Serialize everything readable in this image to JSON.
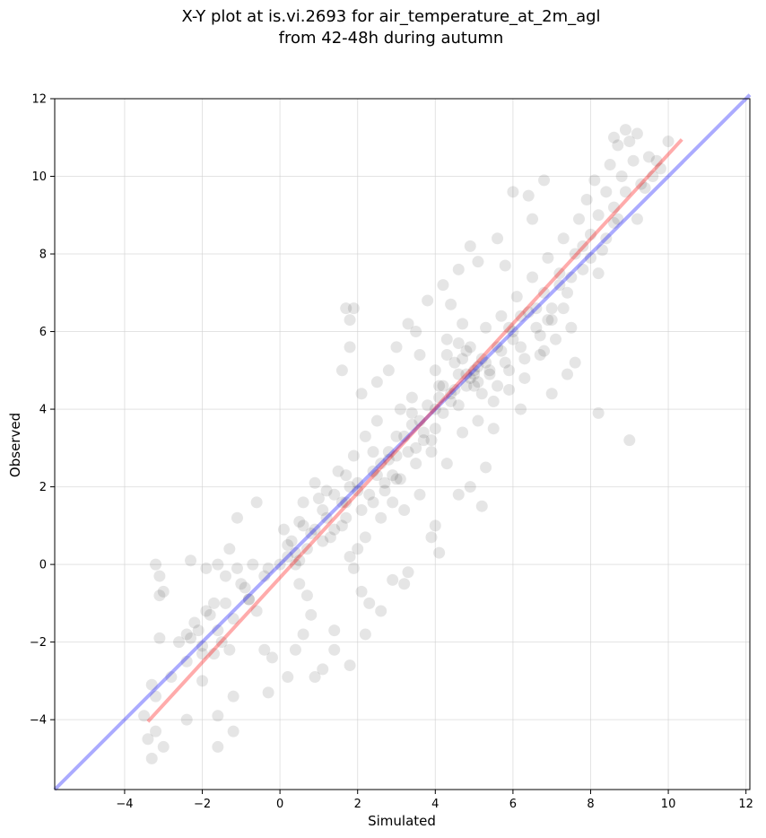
{
  "chart_data": {
    "type": "scatter",
    "title_line1": "X-Y plot at is.vi.2693 for air_temperature_at_2m_agl",
    "title_line2": "from 42-48h during autumn",
    "xlabel": "Simulated",
    "ylabel": "Observed",
    "xlim": [
      -5.8,
      12.1
    ],
    "ylim": [
      -5.8,
      12.0
    ],
    "xticks": [
      -4,
      -2,
      0,
      2,
      4,
      6,
      8,
      10,
      12
    ],
    "yticks": [
      -4,
      -2,
      0,
      2,
      4,
      6,
      8,
      10,
      12
    ],
    "xtick_labels": [
      "−4",
      "−2",
      "0",
      "2",
      "4",
      "6",
      "8",
      "10",
      "12"
    ],
    "ytick_labels": [
      "−4",
      "−2",
      "0",
      "2",
      "4",
      "6",
      "8",
      "10",
      "12"
    ],
    "grid": true,
    "point_color": "#000000",
    "point_alpha": 0.1,
    "identity_line": {
      "color": "#0000ff",
      "from": [
        -5.8,
        -5.8
      ],
      "to": [
        12.1,
        12.1
      ]
    },
    "fit_line": {
      "color": "#ff0000",
      "from": [
        -3.4,
        -4.05
      ],
      "to": [
        10.35,
        10.95
      ]
    },
    "points": [
      [
        -3.3,
        -5.0
      ],
      [
        -3.4,
        -4.5
      ],
      [
        -3.2,
        -4.3
      ],
      [
        -3.0,
        -4.7
      ],
      [
        -3.5,
        -3.9
      ],
      [
        -3.3,
        -3.1
      ],
      [
        -3.2,
        -3.4
      ],
      [
        -3.1,
        -1.9
      ],
      [
        -3.2,
        0.0
      ],
      [
        -3.0,
        -0.7
      ],
      [
        -3.1,
        -0.8
      ],
      [
        -3.1,
        -0.3
      ],
      [
        -2.4,
        -4.0
      ],
      [
        -2.0,
        -3.0
      ],
      [
        -1.6,
        -3.9
      ],
      [
        -1.6,
        -4.7
      ],
      [
        -1.2,
        -4.3
      ],
      [
        -1.2,
        -3.4
      ],
      [
        -2.0,
        -2.3
      ],
      [
        -2.3,
        -1.9
      ],
      [
        -2.6,
        -2.0
      ],
      [
        -2.2,
        -1.5
      ],
      [
        -2.4,
        -1.8
      ],
      [
        -1.9,
        -1.2
      ],
      [
        -1.5,
        -2.0
      ],
      [
        -1.7,
        -2.3
      ],
      [
        -1.3,
        -2.2
      ],
      [
        -1.7,
        -1.0
      ],
      [
        -1.4,
        -0.3
      ],
      [
        -1.0,
        -0.5
      ],
      [
        -1.3,
        0.4
      ],
      [
        -1.1,
        -0.1
      ],
      [
        -0.8,
        -0.9
      ],
      [
        -1.9,
        -0.1
      ],
      [
        -1.6,
        0.0
      ],
      [
        -2.3,
        0.1
      ],
      [
        -1.1,
        1.2
      ],
      [
        -0.6,
        1.6
      ],
      [
        -0.6,
        -1.2
      ],
      [
        -0.4,
        -2.2
      ],
      [
        -0.2,
        -2.4
      ],
      [
        -0.3,
        -3.3
      ],
      [
        0.2,
        -2.9
      ],
      [
        0.4,
        -2.2
      ],
      [
        0.6,
        -1.8
      ],
      [
        0.9,
        -2.9
      ],
      [
        1.1,
        -2.7
      ],
      [
        1.4,
        -2.2
      ],
      [
        1.4,
        -1.7
      ],
      [
        1.8,
        -2.6
      ],
      [
        0.1,
        0.9
      ],
      [
        0.2,
        0.2
      ],
      [
        0.4,
        0.0
      ],
      [
        0.5,
        -0.5
      ],
      [
        0.7,
        -0.8
      ],
      [
        0.8,
        -1.3
      ],
      [
        0.3,
        0.6
      ],
      [
        0.5,
        1.1
      ],
      [
        0.6,
        1.6
      ],
      [
        0.7,
        0.4
      ],
      [
        0.9,
        0.9
      ],
      [
        1.1,
        1.4
      ],
      [
        1.3,
        0.7
      ],
      [
        1.2,
        1.9
      ],
      [
        0.9,
        2.1
      ],
      [
        1.5,
        2.4
      ],
      [
        1.7,
        1.6
      ],
      [
        1.6,
        1.0
      ],
      [
        1.8,
        2.0
      ],
      [
        1.9,
        2.8
      ],
      [
        2.0,
        2.1
      ],
      [
        2.1,
        1.4
      ],
      [
        2.2,
        0.7
      ],
      [
        2.3,
        1.8
      ],
      [
        2.5,
        2.3
      ],
      [
        2.6,
        1.2
      ],
      [
        2.4,
        2.9
      ],
      [
        2.7,
        2.1
      ],
      [
        2.9,
        1.6
      ],
      [
        2.8,
        2.7
      ],
      [
        3.0,
        3.3
      ],
      [
        3.1,
        2.2
      ],
      [
        3.2,
        1.4
      ],
      [
        3.3,
        2.9
      ],
      [
        3.4,
        3.6
      ],
      [
        3.5,
        2.6
      ],
      [
        3.6,
        1.8
      ],
      [
        3.7,
        3.2
      ],
      [
        3.8,
        4.1
      ],
      [
        3.9,
        2.9
      ],
      [
        4.0,
        3.5
      ],
      [
        4.1,
        4.6
      ],
      [
        4.2,
        3.9
      ],
      [
        4.3,
        2.6
      ],
      [
        4.4,
        4.4
      ],
      [
        4.5,
        5.2
      ],
      [
        4.6,
        4.1
      ],
      [
        4.7,
        3.4
      ],
      [
        4.8,
        4.9
      ],
      [
        4.9,
        5.6
      ],
      [
        5.0,
        4.6
      ],
      [
        5.1,
        3.7
      ],
      [
        5.2,
        5.3
      ],
      [
        5.3,
        6.1
      ],
      [
        5.4,
        4.9
      ],
      [
        5.5,
        4.2
      ],
      [
        5.6,
        5.6
      ],
      [
        5.7,
        6.4
      ],
      [
        5.8,
        5.2
      ],
      [
        5.9,
        4.5
      ],
      [
        6.0,
        6.0
      ],
      [
        6.1,
        6.9
      ],
      [
        6.2,
        5.6
      ],
      [
        6.3,
        4.8
      ],
      [
        6.4,
        6.5
      ],
      [
        6.5,
        7.4
      ],
      [
        6.6,
        6.1
      ],
      [
        6.7,
        5.4
      ],
      [
        6.8,
        7.0
      ],
      [
        6.9,
        7.9
      ],
      [
        7.0,
        6.6
      ],
      [
        7.1,
        5.8
      ],
      [
        7.2,
        7.5
      ],
      [
        7.3,
        8.4
      ],
      [
        7.4,
        7.0
      ],
      [
        7.5,
        6.1
      ],
      [
        7.6,
        8.0
      ],
      [
        7.7,
        8.9
      ],
      [
        7.8,
        7.6
      ],
      [
        7.9,
        9.4
      ],
      [
        8.0,
        8.5
      ],
      [
        8.1,
        9.9
      ],
      [
        8.2,
        9.0
      ],
      [
        8.3,
        8.1
      ],
      [
        8.4,
        9.6
      ],
      [
        8.5,
        10.3
      ],
      [
        8.6,
        9.2
      ],
      [
        8.7,
        10.8
      ],
      [
        8.8,
        10.0
      ],
      [
        8.9,
        9.6
      ],
      [
        9.0,
        10.9
      ],
      [
        9.1,
        10.4
      ],
      [
        9.2,
        11.1
      ],
      [
        9.3,
        9.8
      ],
      [
        9.5,
        10.5
      ],
      [
        9.8,
        10.2
      ],
      [
        10.0,
        10.9
      ],
      [
        9.6,
        10.0
      ],
      [
        8.6,
        11.0
      ],
      [
        8.9,
        11.2
      ],
      [
        9.2,
        8.9
      ],
      [
        8.6,
        8.8
      ],
      [
        8.2,
        7.5
      ],
      [
        9.0,
        3.2
      ],
      [
        8.2,
        3.9
      ],
      [
        7.4,
        4.9
      ],
      [
        7.6,
        5.2
      ],
      [
        7.0,
        4.4
      ],
      [
        6.8,
        5.5
      ],
      [
        6.2,
        4.0
      ],
      [
        5.5,
        3.5
      ],
      [
        5.3,
        2.5
      ],
      [
        5.2,
        1.5
      ],
      [
        4.9,
        2.0
      ],
      [
        4.6,
        1.8
      ],
      [
        4.0,
        1.0
      ],
      [
        4.1,
        0.3
      ],
      [
        3.9,
        0.7
      ],
      [
        3.3,
        -0.2
      ],
      [
        3.2,
        -0.5
      ],
      [
        2.9,
        -0.4
      ],
      [
        2.6,
        -1.2
      ],
      [
        2.2,
        -1.8
      ],
      [
        2.1,
        -0.7
      ],
      [
        1.9,
        -0.1
      ],
      [
        1.8,
        0.2
      ],
      [
        2.0,
        0.4
      ],
      [
        2.3,
        -1.0
      ],
      [
        1.7,
        6.6
      ],
      [
        1.9,
        6.6
      ],
      [
        1.8,
        6.3
      ],
      [
        1.8,
        5.6
      ],
      [
        1.6,
        5.0
      ],
      [
        2.1,
        4.4
      ],
      [
        2.5,
        4.7
      ],
      [
        2.8,
        5.0
      ],
      [
        3.0,
        5.6
      ],
      [
        3.3,
        6.2
      ],
      [
        3.5,
        6.0
      ],
      [
        3.8,
        6.8
      ],
      [
        4.2,
        7.2
      ],
      [
        4.6,
        7.6
      ],
      [
        4.9,
        8.2
      ],
      [
        5.1,
        7.8
      ],
      [
        5.6,
        8.4
      ],
      [
        6.0,
        9.6
      ],
      [
        6.4,
        9.5
      ],
      [
        6.8,
        9.9
      ],
      [
        6.5,
        8.9
      ],
      [
        5.8,
        7.7
      ],
      [
        4.4,
        6.7
      ],
      [
        3.6,
        5.4
      ],
      [
        4.3,
        5.8
      ],
      [
        4.7,
        6.2
      ],
      [
        5.0,
        5.0
      ],
      [
        4.8,
        4.6
      ],
      [
        4.9,
        4.8
      ],
      [
        5.1,
        5.1
      ],
      [
        4.6,
        4.9
      ],
      [
        4.7,
        5.3
      ],
      [
        5.2,
        4.4
      ],
      [
        4.4,
        4.2
      ],
      [
        4.0,
        4.0
      ],
      [
        3.6,
        3.7
      ],
      [
        3.2,
        3.3
      ],
      [
        2.8,
        2.9
      ],
      [
        2.4,
        2.4
      ],
      [
        2.0,
        1.9
      ],
      [
        1.6,
        1.6
      ],
      [
        1.2,
        1.2
      ],
      [
        0.8,
        0.8
      ],
      [
        0.4,
        0.3
      ],
      [
        0.0,
        0.0
      ],
      [
        -0.4,
        -0.3
      ],
      [
        -0.8,
        -0.9
      ],
      [
        -1.2,
        -1.4
      ],
      [
        -1.6,
        -1.7
      ],
      [
        -2.0,
        -2.1
      ],
      [
        -2.4,
        -2.5
      ],
      [
        -2.8,
        -2.9
      ],
      [
        5.0,
        4.9
      ],
      [
        5.1,
        4.7
      ],
      [
        4.5,
        4.5
      ],
      [
        4.2,
        4.6
      ],
      [
        5.3,
        5.2
      ],
      [
        5.4,
        5.0
      ],
      [
        4.8,
        5.5
      ],
      [
        4.6,
        5.7
      ],
      [
        3.9,
        3.2
      ],
      [
        3.5,
        3.0
      ],
      [
        2.9,
        2.3
      ],
      [
        2.6,
        2.6
      ],
      [
        1.0,
        1.7
      ],
      [
        0.6,
        1.0
      ],
      [
        1.4,
        1.8
      ],
      [
        1.7,
        2.3
      ],
      [
        6.6,
        6.6
      ],
      [
        6.9,
        6.3
      ],
      [
        7.2,
        7.2
      ],
      [
        7.5,
        7.4
      ],
      [
        6.0,
        5.8
      ],
      [
        6.2,
        6.4
      ],
      [
        5.7,
        5.5
      ],
      [
        5.9,
        6.1
      ],
      [
        3.0,
        2.8
      ],
      [
        3.4,
        3.9
      ],
      [
        3.7,
        3.4
      ],
      [
        4.1,
        4.3
      ],
      [
        -0.7,
        0.0
      ],
      [
        -0.3,
        -0.1
      ],
      [
        0.2,
        0.5
      ],
      [
        0.5,
        0.1
      ],
      [
        -0.9,
        -0.6
      ],
      [
        -1.4,
        -1.0
      ],
      [
        -1.8,
        -1.3
      ],
      [
        -2.1,
        -1.7
      ],
      [
        8.4,
        8.4
      ],
      [
        8.7,
        8.9
      ],
      [
        8.0,
        7.9
      ],
      [
        7.8,
        8.2
      ],
      [
        9.7,
        10.4
      ],
      [
        9.4,
        9.7
      ],
      [
        2.2,
        3.3
      ],
      [
        2.5,
        3.7
      ],
      [
        3.1,
        4.0
      ],
      [
        3.4,
        4.3
      ],
      [
        4.0,
        5.0
      ],
      [
        4.3,
        5.4
      ],
      [
        5.6,
        4.6
      ],
      [
        5.9,
        5.0
      ],
      [
        6.3,
        5.3
      ],
      [
        6.7,
        5.9
      ],
      [
        7.0,
        6.3
      ],
      [
        7.3,
        6.6
      ],
      [
        1.1,
        0.6
      ],
      [
        1.4,
        0.9
      ],
      [
        1.7,
        1.2
      ],
      [
        2.4,
        1.6
      ],
      [
        2.7,
        1.9
      ],
      [
        3.0,
        2.2
      ]
    ]
  }
}
